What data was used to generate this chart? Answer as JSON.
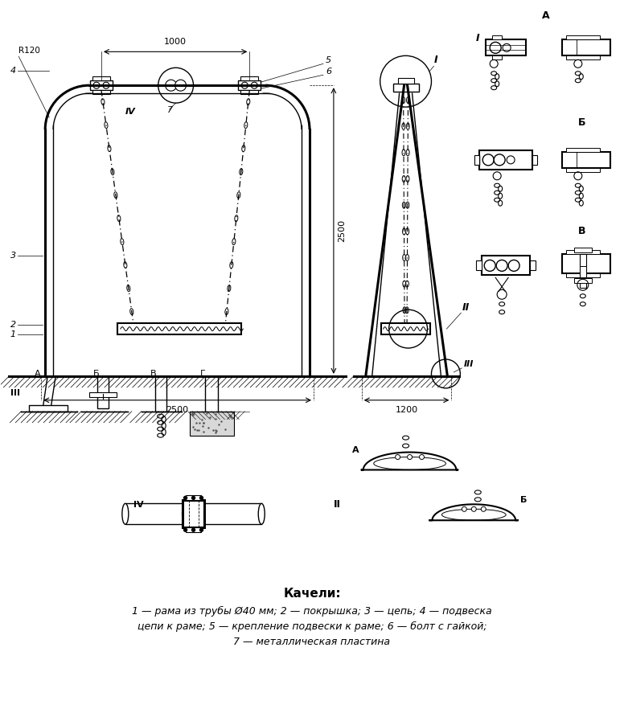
{
  "title": "Качели:",
  "bg_color": "#ffffff",
  "line_color": "#000000",
  "caption_line1": "1 — рама из трубы Ø40 мм; 2 — покрышка; 3 — цепь; 4 — подвеска",
  "caption_line2": "цепи к раме; 5 — крепление подвески к раме; 6 — болт с гайкой;",
  "caption_line3": "7 — металлическая пластина"
}
